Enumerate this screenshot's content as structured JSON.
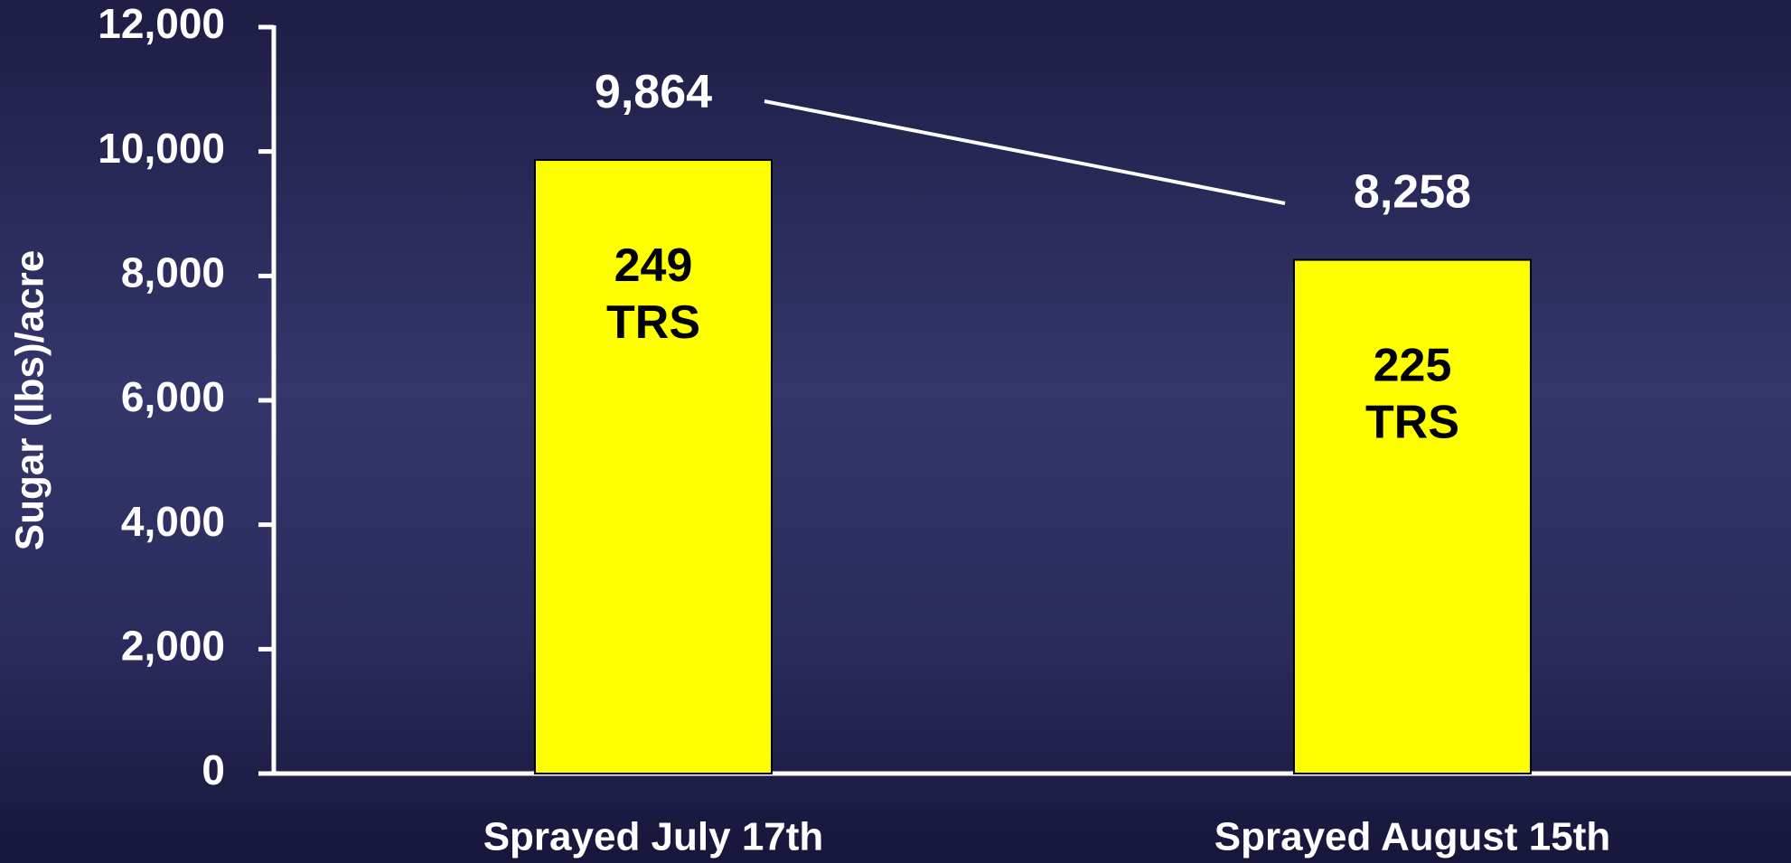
{
  "chart_data": {
    "type": "bar",
    "y_axis_label": "Sugar (lbs)/acre",
    "categories": [
      "Sprayed July 17th",
      "Sprayed August 15th"
    ],
    "values": [
      9864,
      8258
    ],
    "value_labels": [
      "9,864",
      "8,258"
    ],
    "bar_annotations": [
      [
        "249",
        "TRS"
      ],
      [
        "225",
        "TRS"
      ]
    ],
    "color": "#ffff00",
    "ylim": [
      0,
      12000
    ],
    "yticks": [
      0,
      {
        "value": 2000,
        "label": "2,000"
      },
      {
        "value": 4000,
        "label": "4,000"
      },
      {
        "value": 6000,
        "label": "6,000"
      },
      {
        "value": 8000,
        "label": "8,000"
      },
      {
        "value": 10000,
        "label": "10,000"
      },
      {
        "value": 12000,
        "label": "12,000"
      }
    ]
  }
}
